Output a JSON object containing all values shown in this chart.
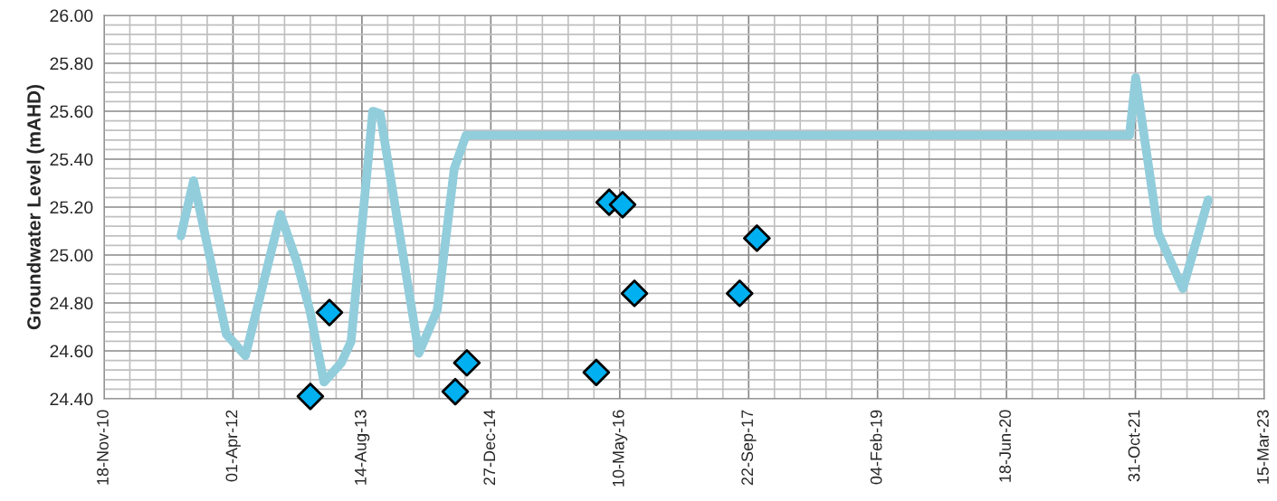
{
  "chart_data": {
    "type": "line",
    "ylabel": "Groundwater Level (mAHD)",
    "xlim": [
      "2010-11-18",
      "2023-03-15"
    ],
    "xticks": [
      {
        "value": "2010-11-18",
        "label": "18-Nov-10"
      },
      {
        "value": "2012-04-01",
        "label": "01-Apr-12"
      },
      {
        "value": "2013-08-14",
        "label": "14-Aug-13"
      },
      {
        "value": "2014-12-27",
        "label": "27-Dec-14"
      },
      {
        "value": "2016-05-10",
        "label": "10-May-16"
      },
      {
        "value": "2017-09-22",
        "label": "22-Sep-17"
      },
      {
        "value": "2019-02-04",
        "label": "04-Feb-19"
      },
      {
        "value": "2020-06-18",
        "label": "18-Jun-20"
      },
      {
        "value": "2021-10-31",
        "label": "31-Oct-21"
      },
      {
        "value": "2023-03-15",
        "label": "15-Mar-23"
      }
    ],
    "ylim": [
      24.4,
      26.0
    ],
    "yticks": [
      {
        "value": 24.4,
        "label": "24.40"
      },
      {
        "value": 24.6,
        "label": "24.60"
      },
      {
        "value": 24.8,
        "label": "24.80"
      },
      {
        "value": 25.0,
        "label": "25.00"
      },
      {
        "value": 25.2,
        "label": "25.20"
      },
      {
        "value": 25.4,
        "label": "25.40"
      },
      {
        "value": 25.6,
        "label": "25.60"
      },
      {
        "value": 25.8,
        "label": "25.80"
      },
      {
        "value": 26.0,
        "label": "26.00"
      }
    ],
    "grid": true,
    "legend": false,
    "series": [
      {
        "color": "#92cddc",
        "marker": "none",
        "line_style": "solid",
        "x": [
          "2011-09-12",
          "2011-10-31",
          "2012-03-06",
          "2012-05-19",
          "2012-10-02",
          "2012-12-05",
          "2013-01-26",
          "2013-03-20",
          "2013-05-26",
          "2013-07-03",
          "2013-09-25",
          "2013-10-24",
          "2014-03-23",
          "2014-06-02",
          "2014-08-07",
          "2014-09-22",
          "2021-10-08",
          "2021-11-01",
          "2022-01-28",
          "2022-05-03",
          "2022-08-09"
        ],
        "values": [
          25.08,
          25.31,
          24.67,
          24.58,
          25.17,
          24.97,
          24.76,
          24.47,
          24.55,
          24.64,
          25.6,
          25.59,
          24.59,
          24.77,
          25.36,
          25.5,
          25.5,
          25.74,
          25.09,
          24.86,
          25.23
        ]
      },
      {
        "type": "scatter",
        "color": "#00b0f0",
        "marker": "diamond",
        "x": [
          "2013-01-26",
          "2013-04-10",
          "2013-07-14",
          "2014-05-05",
          "2014-08-11",
          "2014-09-25",
          "2014-12-19",
          "2016-02-09",
          "2016-03-30",
          "2016-05-21",
          "2016-07-06",
          "2017-08-18",
          "2017-10-24"
        ],
        "values": [
          24.41,
          24.76,
          null,
          null,
          24.43,
          24.55,
          null,
          24.51,
          25.22,
          25.21,
          24.84,
          24.84,
          25.07
        ]
      }
    ]
  }
}
